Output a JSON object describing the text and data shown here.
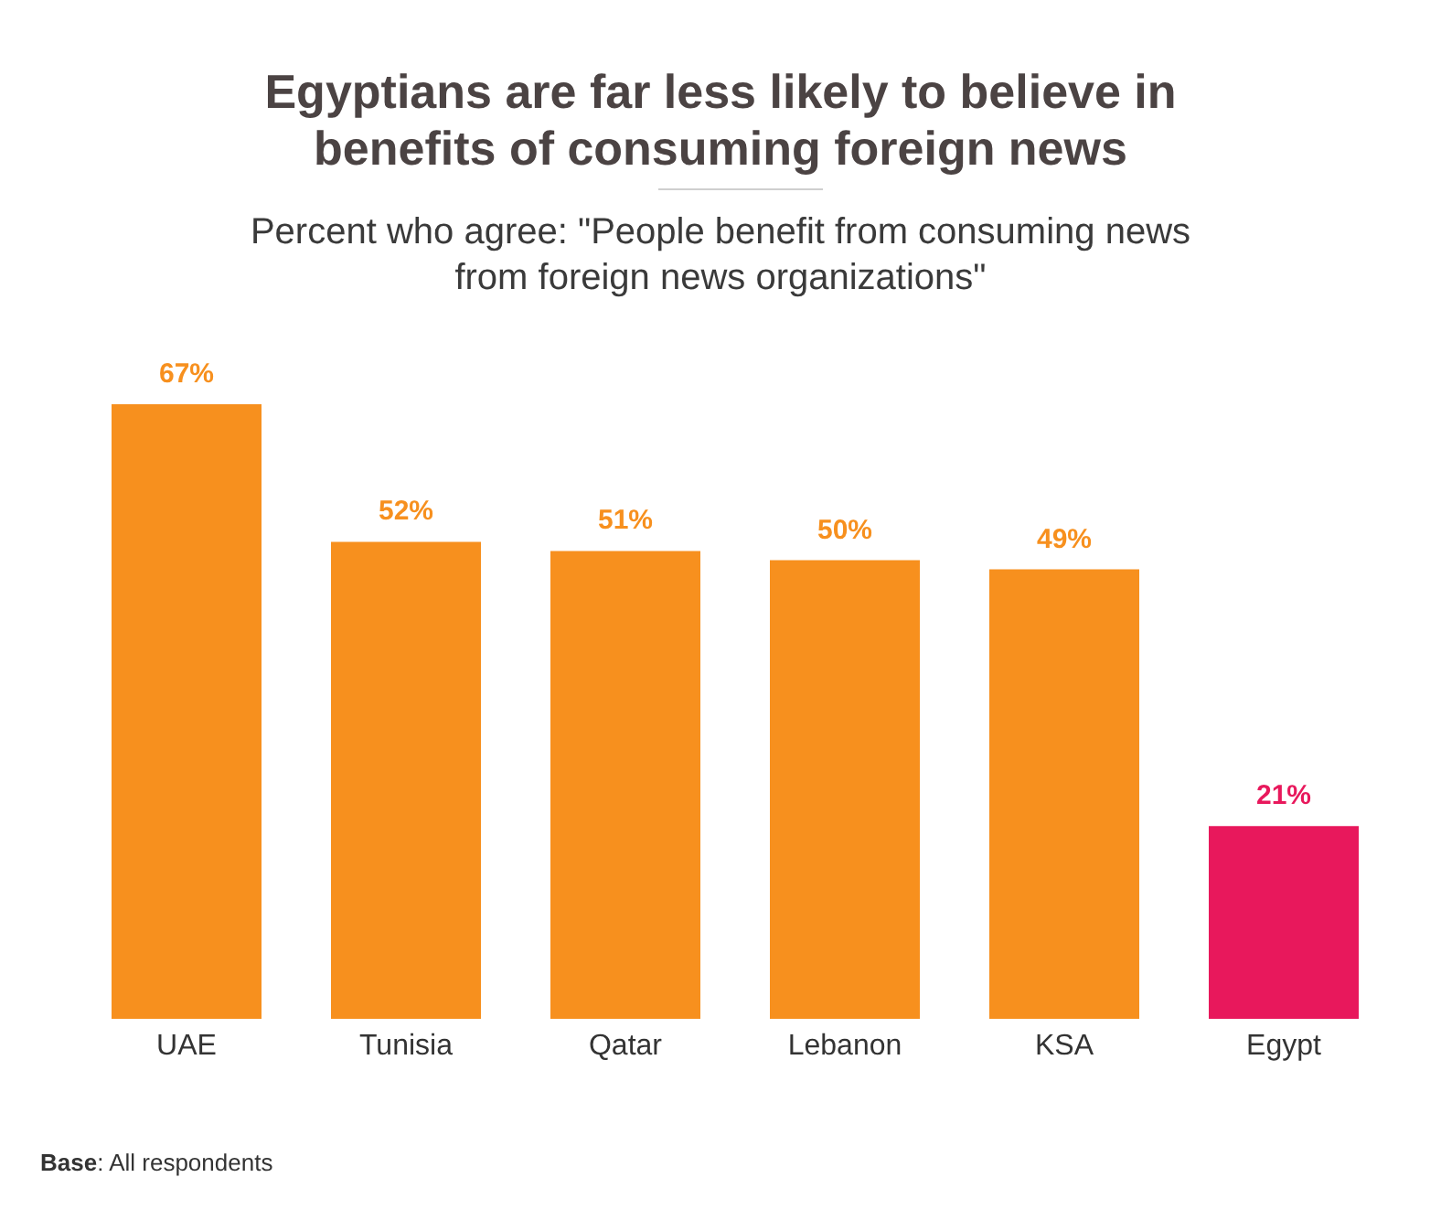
{
  "chart_data": {
    "type": "bar",
    "title": "Egyptians are far less likely to believe in benefits of consuming foreign news",
    "subtitle": "Percent who agree: \"People benefit from consuming news from foreign news organizations\"",
    "categories": [
      "UAE",
      "Tunisia",
      "Qatar",
      "Lebanon",
      "KSA",
      "Egypt"
    ],
    "values": [
      67,
      52,
      51,
      50,
      49,
      21
    ],
    "value_labels": [
      "67%",
      "52%",
      "51%",
      "50%",
      "49%",
      "21%"
    ],
    "colors": [
      "#f7901e",
      "#f7901e",
      "#f7901e",
      "#f7901e",
      "#f7901e",
      "#e8185c"
    ],
    "annotations": [
      "Base: All respondents"
    ]
  }
}
